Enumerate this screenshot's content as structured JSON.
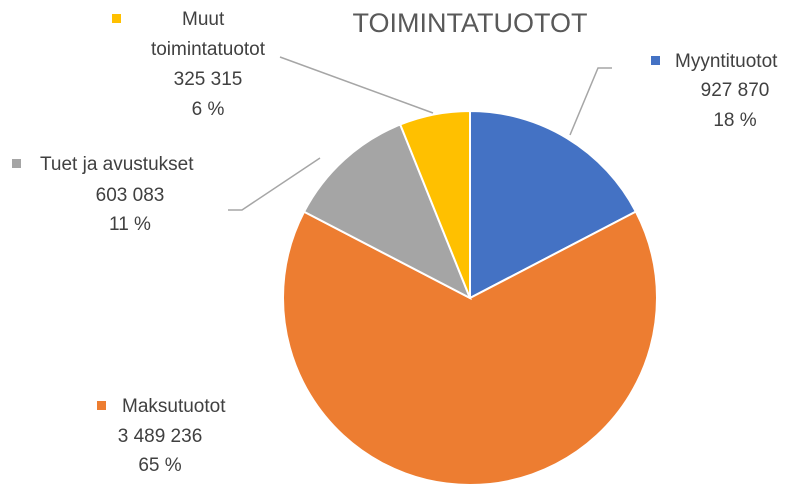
{
  "chart_data": {
    "type": "pie",
    "title": "TOIMINTATUOTOT",
    "categories": [
      "Myyntituotot",
      "Maksutuotot",
      "Tuet ja avustukset",
      "Muut toimintatuotot"
    ],
    "values": [
      927870,
      3489236,
      603083,
      325315
    ],
    "value_labels": [
      "927 870",
      "3 489 236",
      "603 083",
      "325 315"
    ],
    "percents": [
      18,
      65,
      11,
      6
    ],
    "percent_labels": [
      "18 %",
      "65 %",
      "11 %",
      "6 %"
    ],
    "colors": [
      "#4472c4",
      "#ed7d31",
      "#a5a5a5",
      "#ffc000"
    ]
  }
}
